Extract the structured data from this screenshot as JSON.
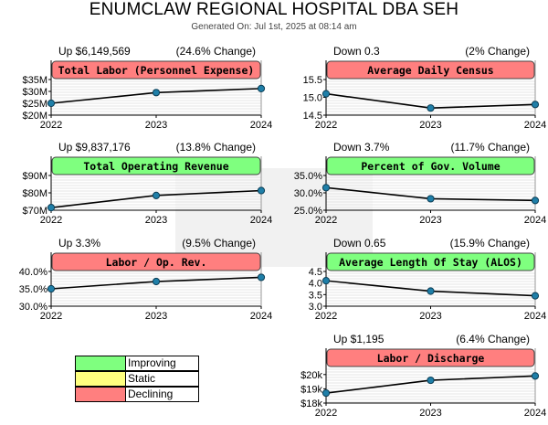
{
  "report": {
    "title": "ENUMCLAW REGIONAL HOSPITAL DBA SEH",
    "generated": "Generated On: Jul 1st, 2025 at 08:14 am"
  },
  "colors": {
    "improving": "#7fff7f",
    "static": "#ffff7f",
    "declining": "#ff7f7f",
    "line": "#000000",
    "marker": "#1f7fa8",
    "grid": "#cccccc"
  },
  "legend": [
    {
      "label": "Improving",
      "color": "#7fff7f"
    },
    {
      "label": "Static",
      "color": "#ffff7f"
    },
    {
      "label": "Declining",
      "color": "#ff7f7f"
    }
  ],
  "chart_data": [
    {
      "type": "line",
      "title": "Total Labor (Personnel Expense)",
      "status": "declining",
      "change_amount": "Up $6,149,569",
      "change_pct": "(24.6% Change)",
      "x": [
        "2022",
        "2023",
        "2024"
      ],
      "values": [
        25.0,
        29.5,
        31.2
      ],
      "ylim": [
        20,
        35
      ],
      "yticks": [
        20,
        25,
        30,
        35
      ],
      "ytick_labels": [
        "$20M",
        "$25M",
        "$30M",
        "$35M"
      ]
    },
    {
      "type": "line",
      "title": "Average Daily Census",
      "status": "declining",
      "change_amount": "Down 0.3",
      "change_pct": "(2% Change)",
      "x": [
        "2022",
        "2023",
        "2024"
      ],
      "values": [
        15.1,
        14.7,
        14.8
      ],
      "ylim": [
        14.5,
        15.5
      ],
      "yticks": [
        14.5,
        15.0,
        15.5
      ],
      "ytick_labels": [
        "14.5",
        "15.0",
        "15.5"
      ]
    },
    {
      "type": "line",
      "title": "Total Operating Revenue",
      "status": "improving",
      "change_amount": "Up $9,837,176",
      "change_pct": "(13.8% Change)",
      "x": [
        "2022",
        "2023",
        "2024"
      ],
      "values": [
        71.5,
        78.5,
        81.3
      ],
      "ylim": [
        70,
        90
      ],
      "yticks": [
        70,
        80,
        90
      ],
      "ytick_labels": [
        "$70M",
        "$80M",
        "$90M"
      ]
    },
    {
      "type": "line",
      "title": "Percent of Gov. Volume",
      "status": "improving",
      "change_amount": "Down 3.7%",
      "change_pct": "(11.7% Change)",
      "x": [
        "2022",
        "2023",
        "2024"
      ],
      "values": [
        31.5,
        28.3,
        27.8
      ],
      "ylim": [
        25,
        35
      ],
      "yticks": [
        25,
        30,
        35
      ],
      "ytick_labels": [
        "25.0%",
        "30.0%",
        "35.0%"
      ]
    },
    {
      "type": "line",
      "title": "Labor / Op. Rev.",
      "status": "declining",
      "change_amount": "Up 3.3%",
      "change_pct": "(9.5% Change)",
      "x": [
        "2022",
        "2023",
        "2024"
      ],
      "values": [
        35.0,
        37.1,
        38.3
      ],
      "ylim": [
        30,
        40
      ],
      "yticks": [
        30,
        35,
        40
      ],
      "ytick_labels": [
        "30.0%",
        "35.0%",
        "40.0%"
      ]
    },
    {
      "type": "line",
      "title": "Average Length Of Stay (ALOS)",
      "status": "improving",
      "change_amount": "Down 0.65",
      "change_pct": "(15.9% Change)",
      "x": [
        "2022",
        "2023",
        "2024"
      ],
      "values": [
        4.1,
        3.65,
        3.45
      ],
      "ylim": [
        3.0,
        4.5
      ],
      "yticks": [
        3.0,
        3.5,
        4.0,
        4.5
      ],
      "ytick_labels": [
        "3.0",
        "3.5",
        "4.0",
        "4.5"
      ]
    },
    {
      "type": "line",
      "title": "Labor / Discharge",
      "status": "declining",
      "change_amount": "Up $1,195",
      "change_pct": "(6.4% Change)",
      "x": [
        "2022",
        "2023",
        "2024"
      ],
      "values": [
        18.7,
        19.6,
        19.9
      ],
      "ylim": [
        18,
        20.5
      ],
      "yticks": [
        18,
        19,
        20
      ],
      "ytick_labels": [
        "$18k",
        "$19k",
        "$20k"
      ]
    }
  ]
}
